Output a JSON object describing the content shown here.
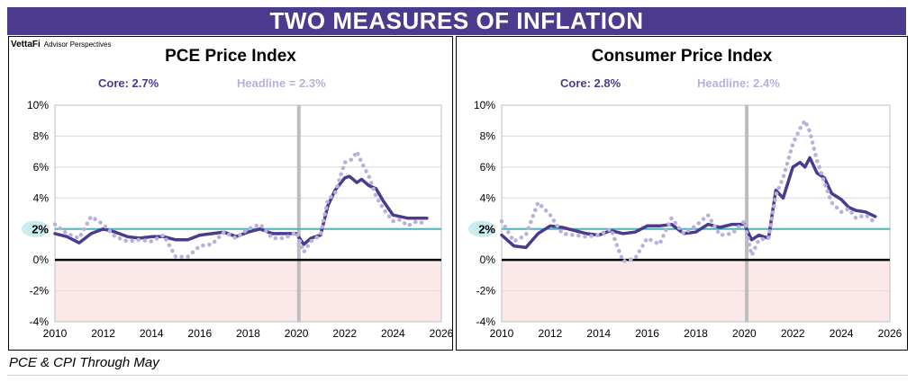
{
  "banner": "TWO MEASURES OF INFLATION",
  "brand": {
    "name": "VettaFi",
    "tag": "Advisor Perspectives"
  },
  "footer": "PCE & CPI Through May",
  "colors": {
    "banner": "#4b3a8e",
    "core": "#4b3a8e",
    "headline": "#b9b0dd",
    "target": "#4fb3b3",
    "negative_band": "#fbe9e9",
    "event_bar": "#bdbdbd"
  },
  "panels": [
    {
      "title": "PCE Price Index",
      "core_label": "Core: 2.7%",
      "headline_label": "Headline = 2.3%"
    },
    {
      "title": "Consumer Price Index",
      "core_label": "Core: 2.8%",
      "headline_label": "Headline: 2.4%"
    }
  ],
  "chart_data": [
    {
      "type": "line",
      "title": "PCE Price Index",
      "xlim": [
        2010,
        2026
      ],
      "ylim": [
        -4,
        10
      ],
      "x_ticks": [
        2010,
        2012,
        2014,
        2016,
        2018,
        2020,
        2022,
        2024,
        2026
      ],
      "y_ticks": [
        "-4%",
        "-2%",
        "0%",
        "2%",
        "4%",
        "6%",
        "8%",
        "10%"
      ],
      "reference_line": {
        "value": 2,
        "label": "2%"
      },
      "shaded_below_zero": true,
      "event_marker_x": 2020.1,
      "grid": true,
      "series": [
        {
          "name": "Core",
          "style": "solid",
          "x": [
            2010.0,
            2010.5,
            2011.0,
            2011.5,
            2012.0,
            2012.5,
            2013.0,
            2013.5,
            2014.0,
            2014.5,
            2015.0,
            2015.5,
            2016.0,
            2016.5,
            2017.0,
            2017.5,
            2018.0,
            2018.5,
            2019.0,
            2019.5,
            2020.0,
            2020.3,
            2020.6,
            2021.0,
            2021.3,
            2021.6,
            2022.0,
            2022.2,
            2022.5,
            2022.7,
            2023.0,
            2023.3,
            2023.6,
            2024.0,
            2024.3,
            2024.6,
            2025.0,
            2025.4
          ],
          "y": [
            1.7,
            1.5,
            1.1,
            1.7,
            2.0,
            1.8,
            1.5,
            1.4,
            1.5,
            1.5,
            1.3,
            1.3,
            1.6,
            1.7,
            1.8,
            1.5,
            1.8,
            2.0,
            1.7,
            1.7,
            1.7,
            1.0,
            1.4,
            1.6,
            3.5,
            4.5,
            5.3,
            5.4,
            5.0,
            5.2,
            4.8,
            4.6,
            3.8,
            2.9,
            2.8,
            2.7,
            2.7,
            2.7
          ]
        },
        {
          "name": "Headline",
          "style": "dotted",
          "x": [
            2010.0,
            2010.5,
            2011.0,
            2011.5,
            2012.0,
            2012.5,
            2013.0,
            2013.5,
            2014.0,
            2014.5,
            2015.0,
            2015.5,
            2016.0,
            2016.5,
            2017.0,
            2017.5,
            2018.0,
            2018.5,
            2019.0,
            2019.5,
            2020.0,
            2020.3,
            2020.6,
            2021.0,
            2021.3,
            2021.6,
            2022.0,
            2022.3,
            2022.5,
            2022.7,
            2023.0,
            2023.3,
            2023.6,
            2024.0,
            2024.3,
            2024.6,
            2025.0,
            2025.4
          ],
          "y": [
            2.3,
            1.7,
            1.4,
            2.8,
            2.3,
            1.5,
            1.2,
            1.3,
            1.2,
            1.6,
            0.2,
            0.2,
            0.9,
            1.0,
            1.8,
            1.4,
            2.0,
            2.3,
            1.4,
            1.4,
            1.8,
            0.5,
            1.2,
            1.6,
            3.9,
            4.3,
            6.3,
            6.5,
            7.0,
            6.3,
            5.4,
            4.1,
            3.3,
            2.5,
            2.6,
            2.2,
            2.5,
            2.3
          ]
        }
      ]
    },
    {
      "type": "line",
      "title": "Consumer Price Index",
      "xlim": [
        2010,
        2026
      ],
      "ylim": [
        -4,
        10
      ],
      "x_ticks": [
        2010,
        2012,
        2014,
        2016,
        2018,
        2020,
        2022,
        2024,
        2026
      ],
      "y_ticks": [
        "-4%",
        "-2%",
        "0%",
        "2%",
        "4%",
        "6%",
        "8%",
        "10%"
      ],
      "reference_line": {
        "value": 2,
        "label": "2%"
      },
      "shaded_below_zero": true,
      "event_marker_x": 2020.1,
      "grid": true,
      "series": [
        {
          "name": "Core",
          "style": "solid",
          "x": [
            2010.0,
            2010.5,
            2011.0,
            2011.5,
            2012.0,
            2012.5,
            2013.0,
            2013.5,
            2014.0,
            2014.5,
            2015.0,
            2015.5,
            2016.0,
            2016.5,
            2017.0,
            2017.5,
            2018.0,
            2018.5,
            2019.0,
            2019.5,
            2020.0,
            2020.3,
            2020.6,
            2021.0,
            2021.3,
            2021.6,
            2022.0,
            2022.3,
            2022.5,
            2022.7,
            2023.0,
            2023.3,
            2023.6,
            2024.0,
            2024.3,
            2024.6,
            2025.0,
            2025.4
          ],
          "y": [
            1.6,
            0.9,
            0.8,
            1.7,
            2.2,
            2.1,
            1.9,
            1.7,
            1.6,
            1.9,
            1.7,
            1.8,
            2.2,
            2.2,
            2.3,
            1.7,
            1.8,
            2.3,
            2.1,
            2.3,
            2.3,
            1.3,
            1.6,
            1.4,
            4.5,
            4.0,
            6.0,
            6.3,
            6.0,
            6.6,
            5.6,
            5.3,
            4.3,
            3.9,
            3.4,
            3.2,
            3.1,
            2.8
          ]
        },
        {
          "name": "Headline",
          "style": "dotted",
          "x": [
            2010.0,
            2010.5,
            2011.0,
            2011.5,
            2012.0,
            2012.5,
            2013.0,
            2013.5,
            2014.0,
            2014.5,
            2015.0,
            2015.5,
            2016.0,
            2016.5,
            2017.0,
            2017.5,
            2018.0,
            2018.5,
            2019.0,
            2019.5,
            2020.0,
            2020.3,
            2020.6,
            2021.0,
            2021.3,
            2021.6,
            2022.0,
            2022.3,
            2022.5,
            2022.7,
            2023.0,
            2023.3,
            2023.6,
            2024.0,
            2024.3,
            2024.6,
            2025.0,
            2025.4
          ],
          "y": [
            2.5,
            1.2,
            1.6,
            3.7,
            2.9,
            1.7,
            1.6,
            1.5,
            1.6,
            2.0,
            -0.1,
            0.1,
            1.4,
            1.0,
            2.7,
            1.7,
            2.2,
            2.9,
            1.6,
            1.7,
            2.5,
            0.3,
            1.3,
            1.4,
            4.2,
            5.3,
            7.5,
            8.5,
            9.0,
            8.3,
            6.4,
            5.0,
            3.7,
            3.1,
            3.3,
            2.7,
            2.9,
            2.4
          ]
        }
      ]
    }
  ]
}
